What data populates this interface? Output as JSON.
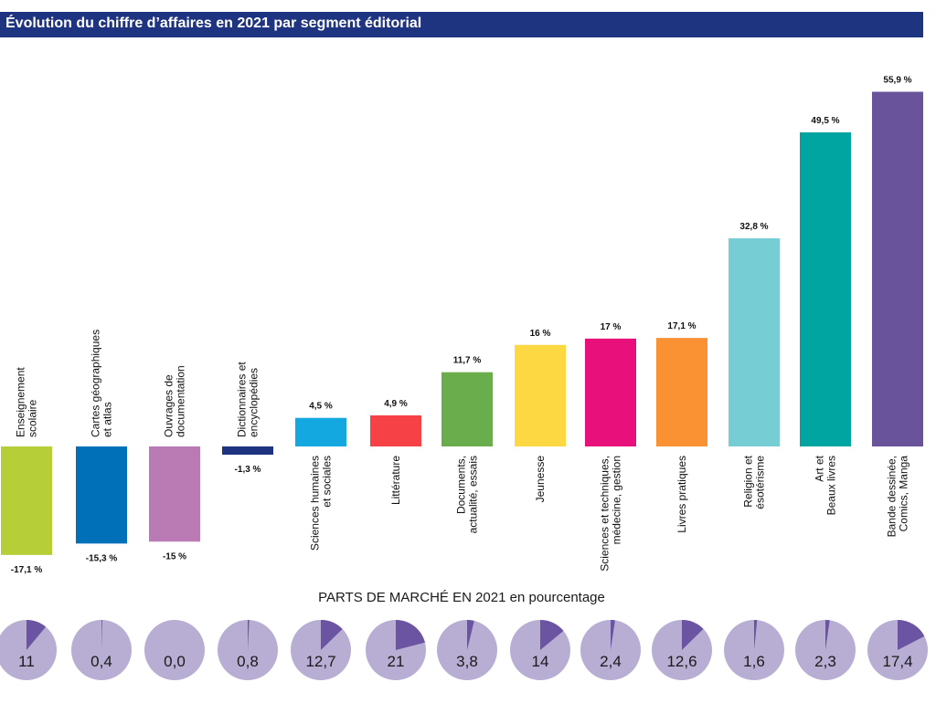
{
  "chart_data": {
    "type": "bar",
    "title": "Évolution du chiffre d’affaires en 2021 par segment éditorial",
    "categories": [
      [
        "Enseignement",
        "scolaire"
      ],
      [
        "Cartes géographiques",
        "et atlas"
      ],
      [
        "Ouvrages de",
        "documentation"
      ],
      [
        "Dictionnaires et",
        "encyclopédies"
      ],
      [
        "Sciences humaines",
        "et sociales"
      ],
      [
        "Littérature"
      ],
      [
        "Documents,",
        "actualité, essais"
      ],
      [
        "Jeunesse"
      ],
      [
        "Sciences et techniques,",
        "médecine, gestion"
      ],
      [
        "Livres pratiques"
      ],
      [
        "Religion et",
        "ésotérisme"
      ],
      [
        "Art et",
        "Beaux livres"
      ],
      [
        "Bande dessinée,",
        "Comics, Manga"
      ]
    ],
    "values": [
      -17.1,
      -15.3,
      -15,
      -1.3,
      4.5,
      4.9,
      11.7,
      16,
      17,
      17.1,
      32.8,
      49.5,
      55.9
    ],
    "value_labels": [
      "-17,1 %",
      "-15,3 %",
      "-15 %",
      "-1,3 %",
      "4,5 %",
      "4,9 %",
      "11,7 %",
      "16 %",
      "17 %",
      "17,1 %",
      "32,8 %",
      "49,5 %",
      "55,9 %"
    ],
    "colors": [
      "#b6cf39",
      "#0070b8",
      "#ba7ab3",
      "#1f3481",
      "#13a9e0",
      "#f64146",
      "#6aad4c",
      "#fed843",
      "#e8117c",
      "#fa9233",
      "#76cdd3",
      "#00a5a2",
      "#69549c"
    ],
    "market_share": {
      "title": "PARTS DE MARCHÉ EN 2021 en pourcentage",
      "values": [
        11,
        0.4,
        0.0,
        0.8,
        12.7,
        21,
        3.8,
        14,
        2.4,
        12.6,
        1.6,
        2.3,
        17.4
      ],
      "labels": [
        "11",
        "0,4",
        "0,0",
        "0,8",
        "12,7",
        "21",
        "3,8",
        "14",
        "2,4",
        "12,6",
        "1,6",
        "2,3",
        "17,4"
      ],
      "colors": {
        "pie_background": "#b8aed4",
        "pie_slice": "#6b55a2"
      }
    }
  }
}
